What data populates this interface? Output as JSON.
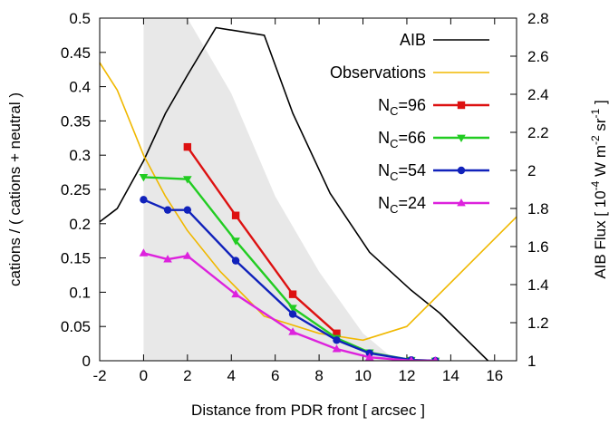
{
  "chart_data": {
    "type": "line",
    "title": "",
    "xlabel": "Distance from PDR front  [ arcsec ]",
    "ylabel": "cations / ( cations + neutral )",
    "y2label": "AIB Flux  [ 10",
    "y2label_exp": "-4",
    "y2label_unit_w": " W m",
    "y2label_exp2": "-2",
    "y2label_unit_sr": " sr",
    "y2label_exp3": "-1",
    "y2label_close": " ]",
    "xlim": [
      -2,
      17
    ],
    "ylim": [
      0,
      0.5
    ],
    "y2lim": [
      1,
      2.8
    ],
    "xticks": [
      -2,
      0,
      2,
      4,
      6,
      8,
      10,
      12,
      14,
      16
    ],
    "yticks": [
      "0",
      "0.05",
      "0.1",
      "0.15",
      "0.2",
      "0.25",
      "0.3",
      "0.35",
      "0.4",
      "0.45",
      "0.5"
    ],
    "y2ticks": [
      "1",
      "1.2",
      "1.4",
      "1.6",
      "1.8",
      "2",
      "2.2",
      "2.4",
      "2.6",
      "2.8"
    ],
    "legend_position": "top-right",
    "shaded_band": {
      "color": "#e8e8e8",
      "upper": [
        [
          0,
          0.5
        ],
        [
          1.5,
          0.5
        ],
        [
          2,
          0.5
        ],
        [
          4,
          0.39
        ],
        [
          6,
          0.24
        ],
        [
          8,
          0.13
        ],
        [
          10,
          0.04
        ],
        [
          11.5,
          0
        ]
      ],
      "lower": [
        [
          11.5,
          0
        ],
        [
          0,
          0
        ]
      ]
    },
    "series": [
      {
        "name": "AIB",
        "color": "#000000",
        "marker": "none",
        "axis": "y2",
        "x": [
          -2,
          -1.2,
          0,
          1,
          2,
          3.3,
          5.5,
          6.8,
          8.5,
          10.3,
          12.2,
          13.5,
          15.7
        ],
        "y": [
          1.73,
          1.8,
          2.05,
          2.3,
          2.5,
          2.75,
          2.71,
          2.3,
          1.88,
          1.57,
          1.37,
          1.25,
          1.0
        ]
      },
      {
        "name": "Observations",
        "color": "#f0b800",
        "marker": "none",
        "axis": "y",
        "x": [
          -2,
          -1.2,
          0,
          1,
          2,
          3.5,
          5.5,
          8,
          10,
          12,
          14.5,
          17
        ],
        "y": [
          0.435,
          0.395,
          0.3,
          0.24,
          0.19,
          0.13,
          0.065,
          0.04,
          0.03,
          0.05,
          0.13,
          0.21
        ]
      },
      {
        "name": "N",
        "subscript": "C",
        "suffix": "=96",
        "color": "#dd1111",
        "marker": "square",
        "axis": "y",
        "x": [
          2,
          4.2,
          6.8,
          8.8
        ],
        "y": [
          0.312,
          0.212,
          0.097,
          0.04
        ]
      },
      {
        "name": "N",
        "subscript": "C",
        "suffix": "=66",
        "color": "#22cc22",
        "marker": "triangle-down",
        "axis": "y",
        "x": [
          0,
          2,
          4.2,
          6.8,
          8.8,
          10.3,
          12.2,
          13.3
        ],
        "y": [
          0.268,
          0.265,
          0.175,
          0.077,
          0.033,
          0.012,
          0.001,
          0.0
        ]
      },
      {
        "name": "N",
        "subscript": "C",
        "suffix": "=54",
        "color": "#1122bb",
        "marker": "circle",
        "axis": "y",
        "x": [
          0,
          1.1,
          2,
          4.2,
          6.8,
          8.8,
          10.3,
          12.2,
          13.3
        ],
        "y": [
          0.235,
          0.22,
          0.22,
          0.146,
          0.068,
          0.03,
          0.011,
          0.001,
          0.0
        ]
      },
      {
        "name": "N",
        "subscript": "C",
        "suffix": "=24",
        "color": "#dd22dd",
        "marker": "triangle-up",
        "axis": "y",
        "x": [
          0,
          1.1,
          2,
          4.2,
          6.8,
          8.8,
          10.3,
          12.2,
          13.3
        ],
        "y": [
          0.157,
          0.148,
          0.153,
          0.097,
          0.042,
          0.017,
          0.005,
          0.0,
          0.0
        ]
      }
    ]
  }
}
